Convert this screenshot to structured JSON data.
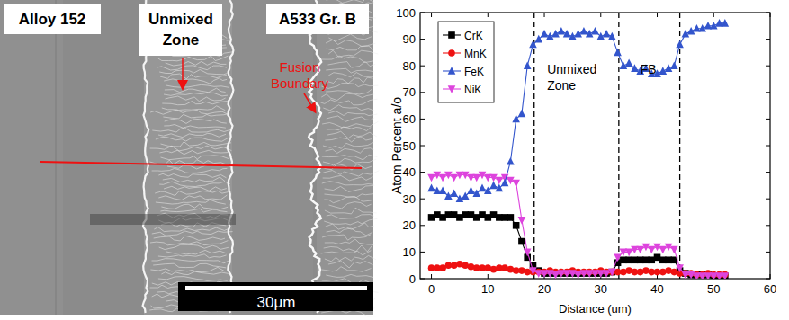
{
  "micrograph": {
    "regions": [
      "Alloy 152",
      "Unmixed\nZone",
      "A533 Gr. B"
    ],
    "callout": "Fusion\nBoundary",
    "scale_bar": "30μm"
  },
  "chart_data": {
    "type": "line",
    "x_label": "Distance (um)",
    "y_label": "Atom Percent a/o",
    "x": [
      0,
      1,
      2,
      3,
      4,
      5,
      6,
      7,
      8,
      9,
      10,
      11,
      12,
      13,
      14,
      15,
      16,
      17,
      18,
      19,
      20,
      21,
      22,
      23,
      24,
      25,
      26,
      27,
      28,
      29,
      30,
      31,
      32,
      33,
      34,
      35,
      36,
      37,
      38,
      39,
      40,
      41,
      42,
      43,
      44,
      45,
      46,
      47,
      48,
      49,
      50,
      51,
      52
    ],
    "series": [
      {
        "name": "CrK",
        "color": "#000000",
        "marker": "square",
        "values": [
          23,
          24,
          23,
          24,
          24,
          23,
          24,
          24,
          23,
          24,
          23,
          24,
          23,
          23,
          23,
          20,
          14,
          8,
          5,
          3,
          2,
          2,
          2,
          2,
          2,
          2,
          2,
          2,
          2,
          2,
          2,
          2,
          2.5,
          6,
          7,
          7,
          7,
          7,
          7,
          7,
          8,
          7,
          7,
          7,
          3,
          2,
          1.5,
          1.5,
          1.5,
          1.5,
          1,
          1,
          1
        ]
      },
      {
        "name": "MnK",
        "color": "#ee1111",
        "marker": "circle",
        "values": [
          4,
          4,
          4,
          5,
          5,
          5.5,
          5,
          4.5,
          4,
          4,
          4,
          3.5,
          4,
          4,
          3.5,
          3,
          3,
          2.5,
          2.5,
          2.5,
          2.5,
          3,
          2.5,
          2.5,
          2.5,
          3,
          2.5,
          2.5,
          2.5,
          2.5,
          3,
          2.5,
          2.5,
          2.5,
          2.5,
          3,
          2.5,
          2.5,
          3,
          2.5,
          2.5,
          2.5,
          3,
          2.5,
          2,
          2,
          2,
          1.5,
          1.5,
          2,
          1.5,
          1.5,
          1.5
        ]
      },
      {
        "name": "FeK",
        "color": "#3355cc",
        "marker": "triangle",
        "values": [
          34,
          33,
          33,
          31,
          32,
          30,
          31,
          33,
          32,
          34,
          33,
          35,
          34,
          36,
          44,
          60,
          62,
          80,
          88,
          90,
          92,
          91,
          92,
          93,
          92,
          91,
          92,
          93,
          92,
          93,
          91,
          92,
          91,
          85,
          80,
          81,
          79,
          78,
          79,
          77,
          77,
          78,
          79,
          80,
          88,
          92,
          93,
          94,
          94,
          95,
          95,
          96,
          96
        ]
      },
      {
        "name": "NiK",
        "color": "#dd44dd",
        "marker": "triangle-down",
        "values": [
          38,
          39,
          38,
          39,
          38,
          39,
          39,
          38,
          38,
          39,
          38,
          38,
          37,
          38,
          37,
          36,
          22,
          10,
          3,
          2,
          2,
          2,
          1.5,
          2,
          2,
          2,
          1.5,
          2,
          2,
          2,
          2,
          2,
          2.5,
          8,
          10,
          10,
          11,
          11,
          12,
          11,
          12,
          11,
          12,
          11,
          4,
          1.5,
          1.5,
          1,
          1,
          1,
          1,
          1,
          1
        ]
      }
    ],
    "xlim": [
      -2,
      60
    ],
    "xticks": [
      0,
      10,
      20,
      30,
      40,
      50,
      60
    ],
    "ylim": [
      0,
      100
    ],
    "yticks": [
      0,
      10,
      20,
      30,
      40,
      50,
      60,
      70,
      80,
      90,
      100
    ],
    "vlines": [
      18.2,
      33.2,
      44
    ],
    "annotations": [
      {
        "text": "Unmixed\nZone",
        "x": 20.5,
        "y": 77
      },
      {
        "text": "FB",
        "x": 37,
        "y": 77
      }
    ],
    "legend": "upper left",
    "grid": false
  }
}
